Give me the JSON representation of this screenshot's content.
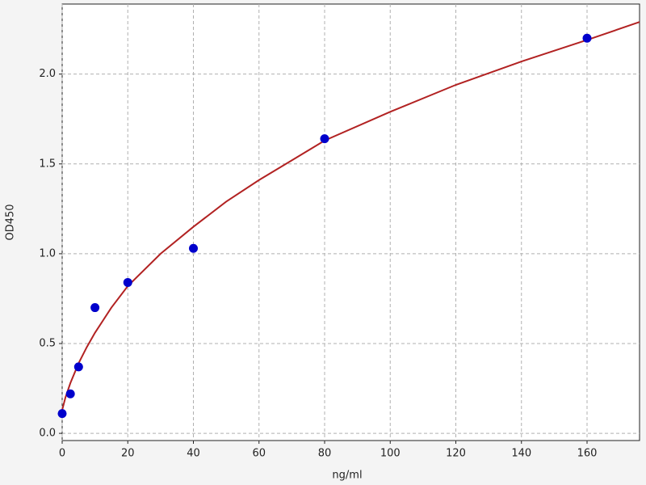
{
  "chart_data": {
    "type": "scatter",
    "xlabel": "ng/ml",
    "ylabel": "OD450",
    "xlim": [
      0,
      176
    ],
    "ylim": [
      -0.04,
      2.39
    ],
    "xticks": [
      0,
      20,
      40,
      60,
      80,
      100,
      120,
      140,
      160
    ],
    "yticks": [
      {
        "value": 0,
        "label": "0.0"
      },
      0.5,
      {
        "value": 1,
        "label": "1.0"
      },
      1.5,
      {
        "value": 2,
        "label": "2.0"
      }
    ],
    "grid": true,
    "series": [
      {
        "style": "marker",
        "color": "#0000cc",
        "x": [
          0,
          2.5,
          5,
          10,
          20,
          40,
          80,
          160
        ],
        "values": [
          0.11,
          0.22,
          0.37,
          0.7,
          0.84,
          1.03,
          1.64,
          2.2
        ]
      },
      {
        "style": "line",
        "color": "#b22222",
        "x": [
          0,
          1,
          2.5,
          5,
          7.5,
          10,
          15,
          20,
          30,
          40,
          50,
          60,
          70,
          80,
          100,
          120,
          140,
          160,
          176
        ],
        "values": [
          0.13,
          0.2,
          0.28,
          0.39,
          0.48,
          0.56,
          0.7,
          0.82,
          1.0,
          1.15,
          1.29,
          1.41,
          1.52,
          1.63,
          1.79,
          1.94,
          2.07,
          2.19,
          2.29
        ]
      }
    ]
  }
}
